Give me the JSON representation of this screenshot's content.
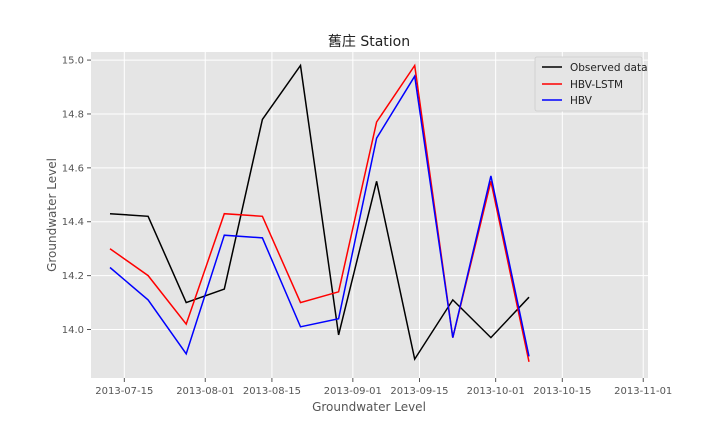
{
  "chart_data": {
    "type": "line",
    "title": "舊庄 Station",
    "xlabel": "Groundwater Level",
    "ylabel": "Groundwater Level",
    "x": [
      "2013-07-12",
      "2013-07-20",
      "2013-07-28",
      "2013-08-05",
      "2013-08-13",
      "2013-08-21",
      "2013-08-29",
      "2013-09-06",
      "2013-09-14",
      "2013-09-22",
      "2013-09-30",
      "2013-10-08",
      "2013-10-16",
      "2013-10-24"
    ],
    "xlim": [
      "2013-07-08",
      "2013-11-02"
    ],
    "ylim": [
      13.82,
      15.03
    ],
    "x_ticks": [
      "2013-07-15",
      "2013-08-01",
      "2013-08-15",
      "2013-09-01",
      "2013-09-15",
      "2013-10-01",
      "2013-10-15",
      "2013-11-01"
    ],
    "y_ticks": [
      "14.0",
      "14.2",
      "14.4",
      "14.6",
      "14.8",
      "15.0"
    ],
    "grid": true,
    "legend_position": "top-right",
    "series": [
      {
        "name": "Observed data",
        "color": "#000000",
        "values": [
          14.43,
          14.42,
          14.1,
          14.15,
          14.78,
          14.98,
          13.98,
          14.55,
          13.89,
          14.11,
          13.97,
          14.12,
          null,
          null
        ]
      },
      {
        "name": "HBV-LSTM",
        "color": "#ff0000",
        "values": [
          14.3,
          14.2,
          14.02,
          14.43,
          14.42,
          14.1,
          14.14,
          14.77,
          14.98,
          13.97,
          14.55,
          13.88,
          null,
          null
        ]
      },
      {
        "name": "HBV",
        "color": "#0000ff",
        "values": [
          14.23,
          14.11,
          13.91,
          14.35,
          14.34,
          14.01,
          14.04,
          14.71,
          14.94,
          13.97,
          14.57,
          13.9,
          null,
          null
        ]
      }
    ]
  }
}
